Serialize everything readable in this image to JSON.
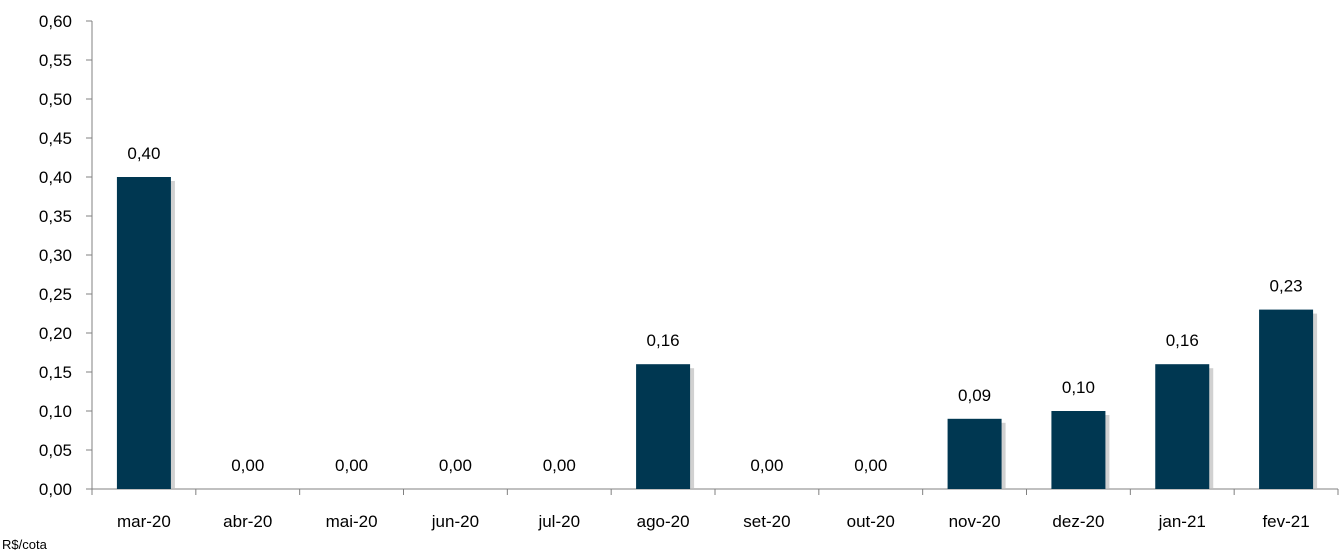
{
  "chart_data": {
    "type": "bar",
    "categories": [
      "mar-20",
      "abr-20",
      "mai-20",
      "jun-20",
      "jul-20",
      "ago-20",
      "set-20",
      "out-20",
      "nov-20",
      "dez-20",
      "jan-21",
      "fev-21"
    ],
    "values": [
      0.4,
      0.0,
      0.0,
      0.0,
      0.0,
      0.16,
      0.0,
      0.0,
      0.09,
      0.1,
      0.16,
      0.23
    ],
    "value_labels": [
      "0,40",
      "0,00",
      "0,00",
      "0,00",
      "0,00",
      "0,16",
      "0,00",
      "0,00",
      "0,09",
      "0,10",
      "0,16",
      "0,23"
    ],
    "y_ticks": [
      0,
      0.05,
      0.1,
      0.15,
      0.2,
      0.25,
      0.3,
      0.35,
      0.4,
      0.45,
      0.5,
      0.55,
      0.6
    ],
    "y_tick_labels": [
      "0,00",
      "0,05",
      "0,10",
      "0,15",
      "0,20",
      "0,25",
      "0,30",
      "0,35",
      "0,40",
      "0,45",
      "0,50",
      "0,55",
      "0,60"
    ],
    "ylim": [
      0,
      0.6
    ],
    "grid": false,
    "legend": "none",
    "bar_color": "#003751",
    "unit_note": "R$/cota"
  }
}
